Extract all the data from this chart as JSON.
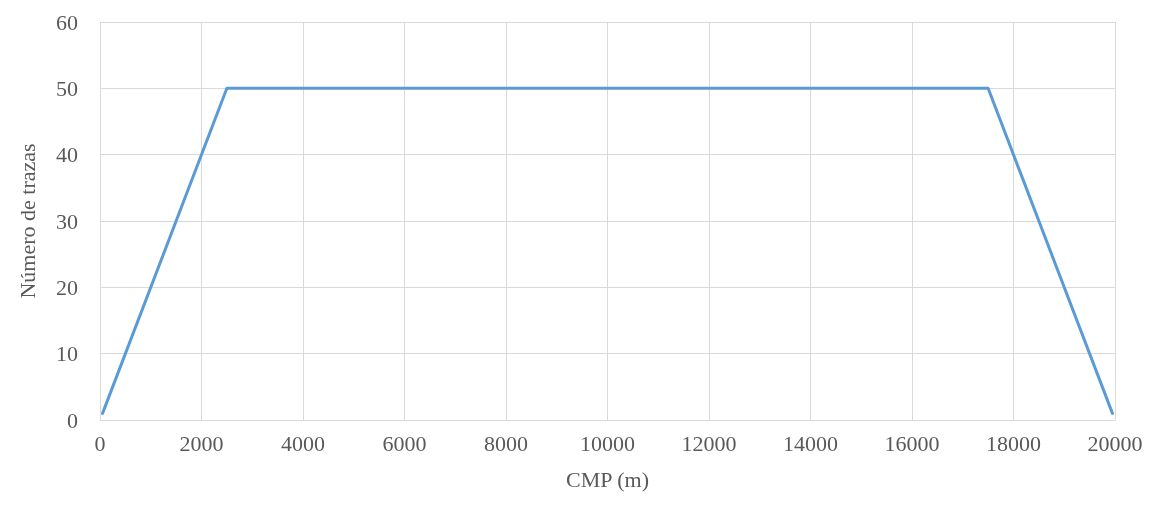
{
  "chart_data": {
    "type": "line",
    "xlabel": "CMP (m)",
    "ylabel": "Número de trazas",
    "series": [
      {
        "color": "#5b9bd5",
        "x": [
          50,
          2500,
          17500,
          19950
        ],
        "values": [
          1,
          50,
          50,
          1
        ]
      }
    ],
    "xlim": [
      0,
      20000
    ],
    "xticks": [
      0,
      2000,
      4000,
      6000,
      8000,
      10000,
      12000,
      14000,
      16000,
      18000,
      20000
    ],
    "ylim": [
      0,
      60
    ],
    "yticks": [
      0,
      10,
      20,
      30,
      40,
      50,
      60
    ],
    "grid": true,
    "legend": false,
    "marker": "none",
    "line_style": "solid"
  }
}
